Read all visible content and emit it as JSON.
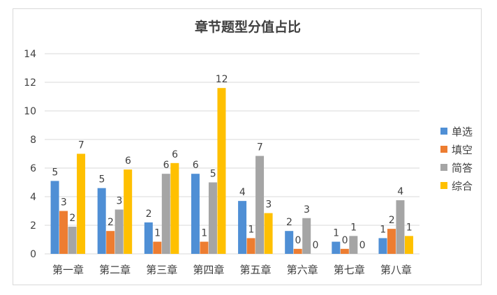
{
  "chart_data": {
    "type": "bar",
    "title": "章节题型分值占比",
    "categories": [
      "第一章",
      "第二章",
      "第三章",
      "第四章",
      "第五章",
      "第六章",
      "第七章",
      "第八章"
    ],
    "yticks": [
      "0",
      "2",
      "4",
      "6",
      "8",
      "10",
      "12",
      "14"
    ],
    "ylim": [
      0,
      14
    ],
    "grid": true,
    "legend_position": "right",
    "series": [
      {
        "name": "单选",
        "color": "#4f8fd5",
        "values": [
          5.1,
          4.6,
          2.2,
          5.6,
          3.7,
          1.6,
          0.85,
          1.1
        ],
        "labels": [
          "5",
          "5",
          "2",
          "6",
          "4",
          "2",
          "1",
          "1"
        ]
      },
      {
        "name": "填空",
        "color": "#ed7d31",
        "values": [
          3.0,
          1.6,
          0.85,
          0.85,
          1.1,
          0.35,
          0.35,
          1.75
        ],
        "labels": [
          "3",
          "2",
          "1",
          "1",
          "1",
          "0",
          "0",
          "2"
        ]
      },
      {
        "name": "简答",
        "color": "#a5a5a5",
        "values": [
          1.9,
          3.1,
          5.6,
          5.0,
          6.85,
          2.5,
          1.25,
          3.75
        ],
        "labels": [
          "2",
          "3",
          "6",
          "5",
          "7",
          "3",
          "1",
          "4"
        ]
      },
      {
        "name": "综合",
        "color": "#ffc000",
        "values": [
          7.0,
          5.9,
          6.35,
          11.6,
          2.85,
          0,
          0,
          1.25
        ],
        "labels": [
          "7",
          "6",
          "6",
          "12",
          "3",
          "0",
          "0",
          "1"
        ]
      }
    ]
  }
}
